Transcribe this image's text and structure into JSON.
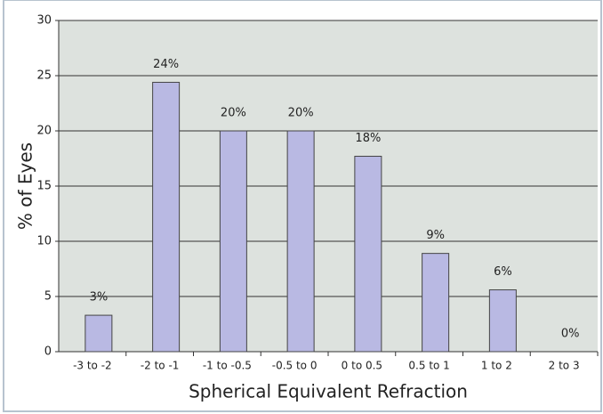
{
  "chart_data": {
    "type": "bar",
    "x_label": "Spherical Equivalent Refraction",
    "y_label": "% of Eyes",
    "categories": [
      "-3 to -2",
      "-2 to -1",
      "-1 to -0.5",
      "-0.5 to 0",
      "0 to 0.5",
      "0.5 to 1",
      "1 to 2",
      "2 to 3"
    ],
    "values": [
      3.3,
      24.4,
      20,
      20,
      17.7,
      8.9,
      5.6,
      0
    ],
    "value_labels": [
      "3%",
      "24%",
      "20%",
      "20%",
      "18%",
      "9%",
      "6%",
      "0%"
    ],
    "color": "#b9b9e3",
    "ylim": [
      0,
      30
    ],
    "yticks": [
      0,
      5,
      10,
      15,
      20,
      25,
      30
    ],
    "grid": true
  }
}
